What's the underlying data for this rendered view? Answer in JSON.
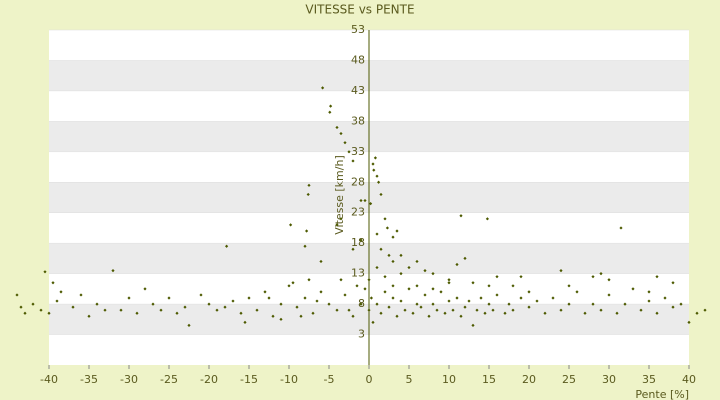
{
  "chart_data": {
    "type": "scatter",
    "title": "VITESSE vs PENTE",
    "x_label": "Pente [%]",
    "y_label": "Vitesse [km/h]",
    "color": "#4d5a00",
    "band_color": "#ebebeb",
    "xlim": [
      -40,
      40
    ],
    "xticks": [
      -40,
      -35,
      -30,
      -25,
      -20,
      -15,
      -10,
      -5,
      0,
      5,
      10,
      15,
      20,
      25,
      30,
      35,
      40
    ],
    "ylim": [
      -2,
      53
    ],
    "yticks": [
      3,
      8,
      13,
      18,
      23,
      28,
      33,
      38,
      43,
      48,
      53
    ],
    "grid_bands": true,
    "x": [
      -5.8,
      -4.8,
      -4.9,
      -4,
      -3.5,
      -3,
      -2.5,
      -2,
      -7.5,
      -7.6,
      -9.8,
      -7.8,
      -4,
      -3.5,
      -1,
      -0.5,
      0.5,
      0.8,
      0.6,
      1,
      1.2,
      1.5,
      0.2,
      2,
      2.3,
      3,
      3.5,
      11.5,
      14.8,
      31.5,
      -17.8,
      -8,
      -6,
      -2,
      -1,
      1,
      1.5,
      2.5,
      3,
      4,
      5,
      6,
      7,
      8,
      10,
      12,
      11,
      13,
      16,
      18,
      19,
      24,
      29,
      28,
      36,
      -32,
      -40.5,
      -39.5,
      -38.5,
      -36,
      -34,
      -33,
      -30,
      -28,
      -27,
      -25,
      -23,
      -22.5,
      -21,
      -20,
      -19,
      -17,
      -16,
      -15,
      -14,
      -13,
      -12,
      -11,
      -10,
      -9,
      -8,
      -7,
      -6,
      -5,
      -4,
      -3,
      -2,
      -1,
      -0.5,
      0,
      0.3,
      0.5,
      1,
      1.5,
      2,
      2.5,
      3,
      3.5,
      4,
      4.5,
      5,
      5.5,
      6,
      6.5,
      7,
      7.5,
      8,
      8.5,
      9,
      9.5,
      10,
      10.5,
      11,
      11.5,
      12,
      12.5,
      13,
      13.5,
      14,
      14.5,
      15,
      15.5,
      16,
      17,
      17.5,
      18,
      19,
      20,
      21,
      22,
      23,
      24,
      25,
      26,
      27,
      28,
      29,
      30,
      31,
      32,
      33,
      34,
      35,
      36,
      37,
      38,
      39,
      40,
      41,
      42,
      -44,
      -43.5,
      -43,
      -42,
      -41,
      -40,
      -39,
      -37,
      -35,
      -31,
      -29,
      -26,
      -24,
      -18,
      -15.5,
      -12.5,
      -11,
      -9.5,
      -8.5,
      -7.5,
      -6.5,
      -3.5,
      -2.5,
      -1.5,
      0,
      1,
      2,
      3,
      4,
      6,
      8,
      10,
      15,
      20,
      25,
      30,
      35,
      38
    ],
    "values": [
      43.5,
      40.5,
      39.5,
      37,
      36,
      34.5,
      33,
      31.5,
      27.5,
      26,
      21,
      20,
      21,
      22,
      25,
      25,
      31,
      32,
      30,
      29,
      28,
      26,
      24.5,
      22,
      20.5,
      19,
      20,
      22.5,
      22,
      20.5,
      17.5,
      17.5,
      15,
      17,
      18.5,
      19.5,
      17,
      16,
      15,
      16,
      14,
      15,
      13.5,
      13,
      12,
      15.5,
      14.5,
      11.5,
      12.5,
      11,
      12.5,
      13.5,
      13,
      12.5,
      12.5,
      13.5,
      13.3,
      11.5,
      10,
      9.5,
      8,
      7,
      9,
      10.5,
      8,
      9,
      7.5,
      4.5,
      9.5,
      8,
      7,
      8.5,
      6.5,
      9,
      7,
      10,
      6,
      8,
      11,
      7.5,
      9,
      6.5,
      10,
      8,
      7,
      9.5,
      6,
      8,
      10.5,
      7,
      9,
      5,
      8,
      6.5,
      10,
      7.5,
      9,
      6,
      8.5,
      7,
      10.5,
      6.5,
      8,
      7.5,
      9.5,
      6,
      8,
      7,
      10,
      6.5,
      8.5,
      7,
      9,
      6,
      7.5,
      8.5,
      4.5,
      7,
      9,
      6.5,
      8,
      7,
      9.5,
      6.5,
      8,
      7,
      9,
      7.5,
      8.5,
      6.5,
      9,
      7,
      8,
      10,
      6.5,
      8,
      7,
      9.5,
      6.5,
      8,
      10.5,
      7,
      8.5,
      6.5,
      9,
      7.5,
      8,
      5,
      6.5,
      7,
      9.5,
      7.5,
      6.5,
      8,
      7,
      6.5,
      8.5,
      7.5,
      6,
      7,
      6.5,
      7,
      6.5,
      7.5,
      5,
      9,
      5.5,
      11.5,
      6,
      12,
      8.5,
      12,
      7,
      11,
      12,
      14,
      12.5,
      11,
      13,
      11,
      10.5,
      11.5,
      11,
      10,
      11,
      12,
      10,
      11.5
    ]
  }
}
